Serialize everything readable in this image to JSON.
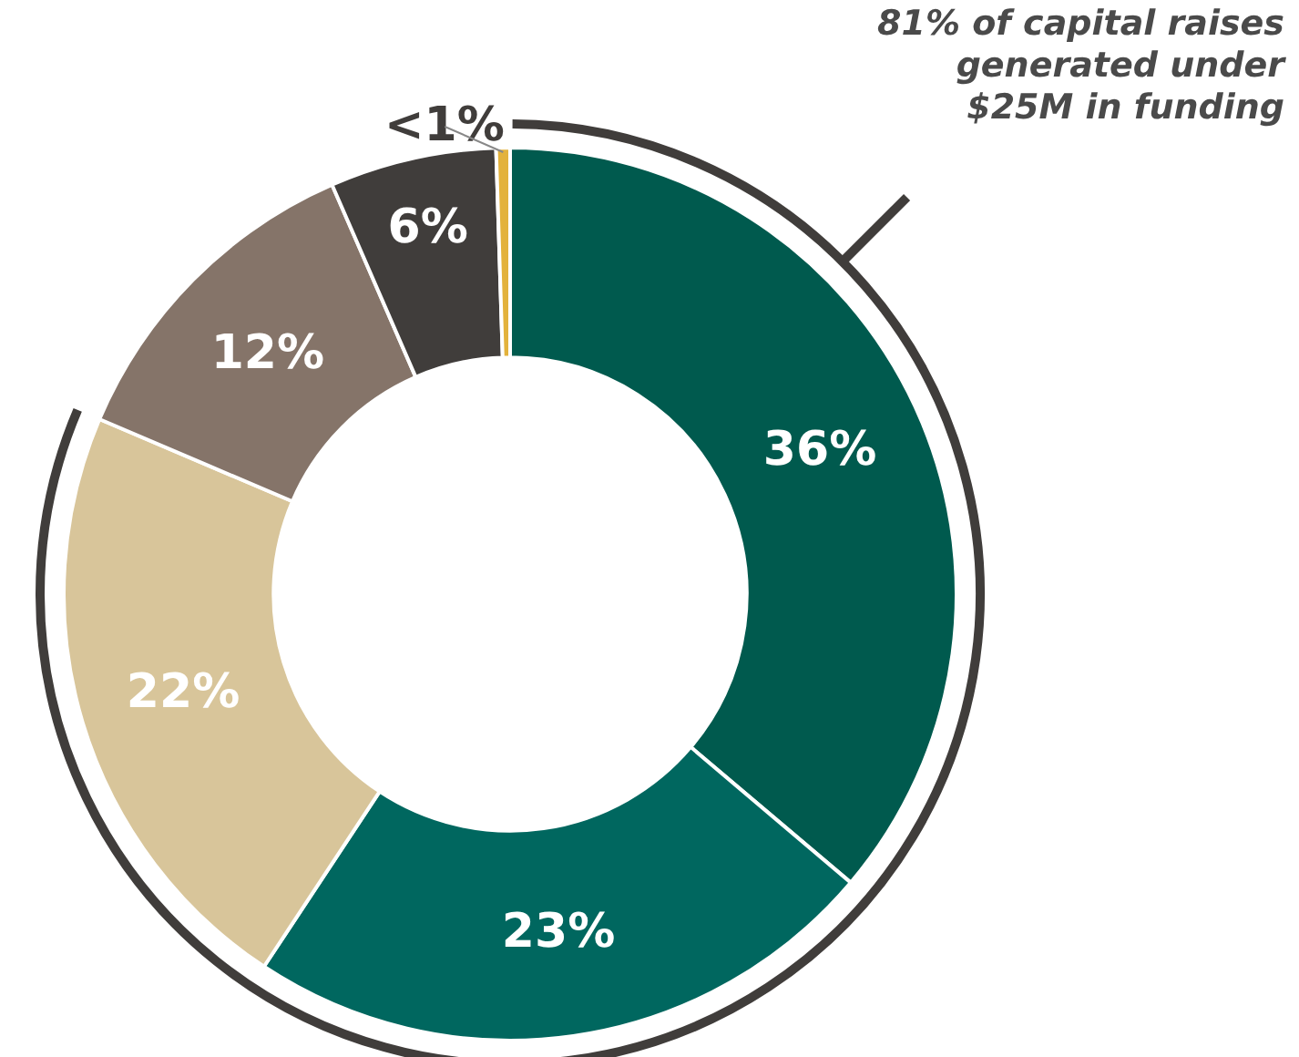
{
  "chart_data": {
    "type": "donut",
    "categories": [
      null,
      null,
      null,
      null,
      null,
      null
    ],
    "values": [
      36,
      23,
      22,
      12,
      6,
      0.5
    ],
    "value_labels": [
      "36%",
      "23%",
      "22%",
      "12%",
      "6%",
      "<1%"
    ],
    "colors": [
      "#005a4e",
      "#00675f",
      "#d8c59a",
      "#857469",
      "#403d3b",
      "#e3b23c"
    ],
    "annotations": [
      "81% of capital raises generated under $25M in funding"
    ],
    "legend": false
  }
}
